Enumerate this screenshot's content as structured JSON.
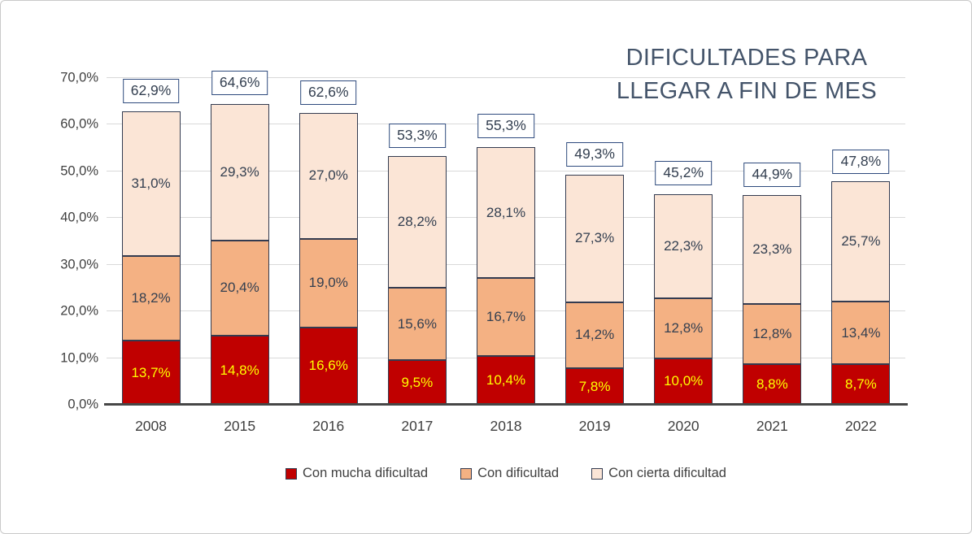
{
  "chart_data": {
    "type": "bar",
    "stacked": true,
    "title": "DIFICULTADES PARA LLEGAR A FIN DE MES",
    "title_lines": [
      "DIFICULTADES PARA",
      "LLEGAR A FIN DE MES"
    ],
    "categories": [
      "2008",
      "2015",
      "2016",
      "2017",
      "2018",
      "2019",
      "2020",
      "2021",
      "2022"
    ],
    "series": [
      {
        "name": "Con mucha dificultad",
        "color": "#C00000",
        "label_color": "#FFFF00",
        "values": [
          13.7,
          14.8,
          16.6,
          9.5,
          10.4,
          7.8,
          10.0,
          8.8,
          8.7
        ],
        "labels": [
          "13,7%",
          "14,8%",
          "16,6%",
          "9,5%",
          "10,4%",
          "7,8%",
          "10,0%",
          "8,8%",
          "8,7%"
        ]
      },
      {
        "name": "Con dificultad",
        "color": "#F4B183",
        "label_color": "#333F50",
        "values": [
          18.2,
          20.4,
          19.0,
          15.6,
          16.7,
          14.2,
          12.8,
          12.8,
          13.4
        ],
        "labels": [
          "18,2%",
          "20,4%",
          "19,0%",
          "15,6%",
          "16,7%",
          "14,2%",
          "12,8%",
          "12,8%",
          "13,4%"
        ]
      },
      {
        "name": "Con cierta dificultad",
        "color": "#FBE5D6",
        "label_color": "#333F50",
        "values": [
          31.0,
          29.3,
          27.0,
          28.2,
          28.1,
          27.3,
          22.3,
          23.3,
          25.7
        ],
        "labels": [
          "31,0%",
          "29,3%",
          "27,0%",
          "28,2%",
          "28,1%",
          "27,3%",
          "22,3%",
          "23,3%",
          "25,7%"
        ]
      }
    ],
    "totals": {
      "values": [
        62.9,
        64.6,
        62.6,
        53.3,
        55.3,
        49.3,
        45.2,
        44.9,
        47.8
      ],
      "labels": [
        "62,9%",
        "64,6%",
        "62,6%",
        "53,3%",
        "55,3%",
        "49,3%",
        "45,2%",
        "44,9%",
        "47,8%"
      ]
    },
    "y_ticks": [
      "0,0%",
      "10,0%",
      "20,0%",
      "30,0%",
      "40,0%",
      "50,0%",
      "60,0%",
      "70,0%"
    ],
    "y_tick_values": [
      0,
      10,
      20,
      30,
      40,
      50,
      60,
      70
    ],
    "ylim": [
      0,
      70
    ],
    "grid": true,
    "legend_position": "bottom"
  }
}
